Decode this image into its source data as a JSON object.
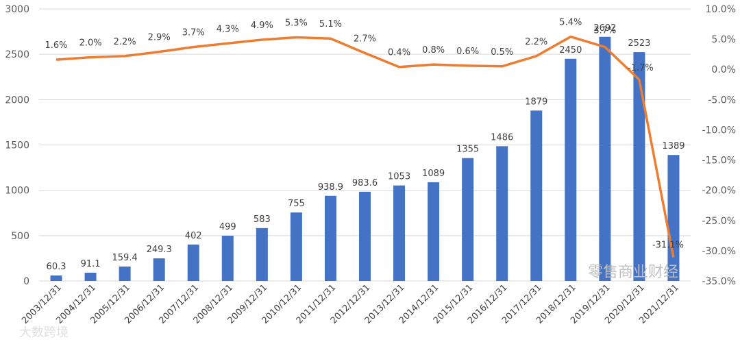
{
  "chart_data": {
    "type": "bar+line",
    "categories": [
      "2003/12/31",
      "2004/12/31",
      "2005/12/31",
      "2006/12/31",
      "2007/12/31",
      "2008/12/31",
      "2009/12/31",
      "2010/12/31",
      "2011/12/31",
      "2012/12/31",
      "2013/12/31",
      "2014/12/31",
      "2015/12/31",
      "2016/12/31",
      "2017/12/31",
      "2018/12/31",
      "2019/12/31",
      "2020/12/31",
      "2021/12/31"
    ],
    "bar_series": {
      "values": [
        60.3,
        91.1,
        159.4,
        249.3,
        402,
        499,
        583,
        755,
        938.9,
        983.6,
        1053,
        1089,
        1355,
        1486,
        1879,
        2450,
        2692,
        2523,
        1389
      ],
      "labels": [
        "60.3",
        "91.1",
        "159.4",
        "249.3",
        "402",
        "499",
        "583",
        "755",
        "938.9",
        "983.6",
        "1053",
        "1089",
        "1355",
        "1486",
        "1879",
        "2450",
        "2692",
        "2523",
        "1389"
      ],
      "color": "#4472c4",
      "axis": "left"
    },
    "line_series": {
      "values": [
        1.6,
        2.0,
        2.2,
        2.9,
        3.7,
        4.3,
        4.9,
        5.3,
        5.1,
        2.7,
        0.4,
        0.8,
        0.6,
        0.5,
        2.2,
        5.4,
        3.7,
        -1.7,
        -31.1
      ],
      "labels": [
        "1.6%",
        "2.0%",
        "2.2%",
        "2.9%",
        "3.7%",
        "4.3%",
        "4.9%",
        "5.3%",
        "5.1%",
        "2.7%",
        "0.4%",
        "0.8%",
        "0.6%",
        "0.5%",
        "2.2%",
        "5.4%",
        "3.7%",
        "-1.7%",
        "-31.1%"
      ],
      "color": "#ed7d31",
      "axis": "right"
    },
    "left_axis": {
      "ylim": [
        0,
        3000
      ],
      "ticks": [
        0,
        500,
        1000,
        1500,
        2000,
        2500,
        3000
      ],
      "tick_labels": [
        "0",
        "500",
        "1000",
        "1500",
        "2000",
        "2500",
        "3000"
      ]
    },
    "right_axis": {
      "ylim": [
        -35,
        10
      ],
      "ticks": [
        10,
        5,
        0,
        -5,
        -10,
        -15,
        -20,
        -25,
        -30,
        -35
      ],
      "tick_labels": [
        "10.0%",
        "5.0%",
        "0.0%",
        "-5.0%",
        "-10.0%",
        "-15.0%",
        "-20.0%",
        "-25.0%",
        "-30.0%",
        "-35.0%"
      ]
    },
    "grid": true,
    "title": "",
    "xlabel": "",
    "ylabel": ""
  },
  "watermarks": {
    "main": "零售商业财经",
    "corner": "大数跨境"
  }
}
